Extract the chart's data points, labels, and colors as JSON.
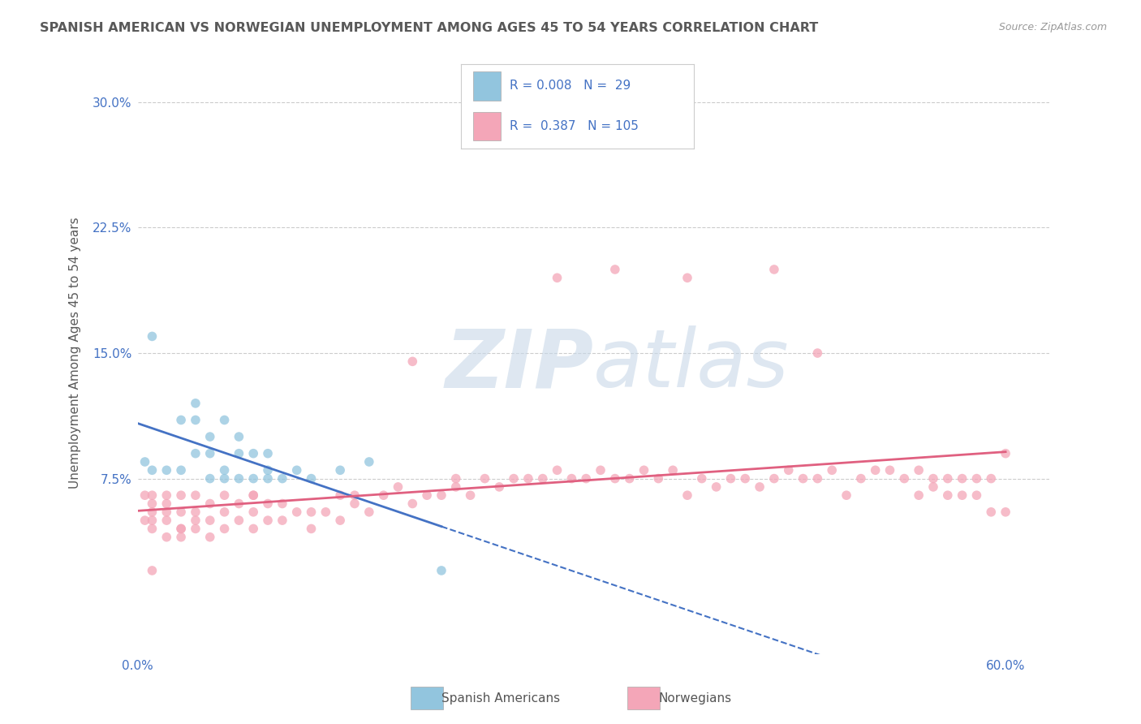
{
  "title": "SPANISH AMERICAN VS NORWEGIAN UNEMPLOYMENT AMONG AGES 45 TO 54 YEARS CORRELATION CHART",
  "source": "Source: ZipAtlas.com",
  "ylabel": "Unemployment Among Ages 45 to 54 years",
  "xlim": [
    0.0,
    0.63
  ],
  "ylim": [
    -0.03,
    0.33
  ],
  "ytick_vals": [
    0.075,
    0.15,
    0.225,
    0.3
  ],
  "ytick_labels": [
    "7.5%",
    "15.0%",
    "22.5%",
    "30.0%"
  ],
  "xtick_vals": [
    0.0,
    0.6
  ],
  "xtick_labels": [
    "0.0%",
    "60.0%"
  ],
  "blue_dot_color": "#92c5de",
  "pink_dot_color": "#f4a6b8",
  "blue_line_color": "#4472c4",
  "pink_line_color": "#e06080",
  "title_color": "#595959",
  "source_color": "#999999",
  "tick_color": "#4472c4",
  "ylabel_color": "#595959",
  "grid_color": "#cccccc",
  "legend_border": "#cccccc",
  "legend_text_color": "#4472c4",
  "watermark_color": "#c8d8e8",
  "background_color": "#ffffff",
  "dot_size": 70,
  "dot_alpha": 0.75,
  "legend_r1": "R = 0.008",
  "legend_n1": "N =  29",
  "legend_r2": "R =  0.387",
  "legend_n2": "N = 105",
  "bottom_label1": "Spanish Americans",
  "bottom_label2": "Norwegians",
  "sp_x": [
    0.005,
    0.01,
    0.01,
    0.02,
    0.03,
    0.03,
    0.04,
    0.04,
    0.04,
    0.05,
    0.05,
    0.05,
    0.06,
    0.06,
    0.06,
    0.07,
    0.07,
    0.07,
    0.08,
    0.08,
    0.09,
    0.09,
    0.09,
    0.1,
    0.11,
    0.12,
    0.14,
    0.16,
    0.21
  ],
  "sp_y": [
    0.085,
    0.08,
    0.16,
    0.08,
    0.08,
    0.11,
    0.09,
    0.11,
    0.12,
    0.075,
    0.09,
    0.1,
    0.075,
    0.08,
    0.11,
    0.075,
    0.09,
    0.1,
    0.075,
    0.09,
    0.075,
    0.08,
    0.09,
    0.075,
    0.08,
    0.075,
    0.08,
    0.085,
    0.02
  ],
  "no_x": [
    0.005,
    0.005,
    0.01,
    0.01,
    0.01,
    0.01,
    0.01,
    0.02,
    0.02,
    0.02,
    0.02,
    0.02,
    0.03,
    0.03,
    0.03,
    0.03,
    0.03,
    0.04,
    0.04,
    0.04,
    0.05,
    0.05,
    0.05,
    0.06,
    0.06,
    0.06,
    0.07,
    0.07,
    0.08,
    0.08,
    0.08,
    0.09,
    0.09,
    0.1,
    0.1,
    0.11,
    0.12,
    0.12,
    0.13,
    0.14,
    0.14,
    0.15,
    0.15,
    0.16,
    0.17,
    0.18,
    0.19,
    0.2,
    0.21,
    0.22,
    0.22,
    0.23,
    0.24,
    0.25,
    0.26,
    0.27,
    0.28,
    0.29,
    0.3,
    0.31,
    0.32,
    0.33,
    0.34,
    0.35,
    0.36,
    0.37,
    0.38,
    0.39,
    0.4,
    0.41,
    0.42,
    0.43,
    0.44,
    0.45,
    0.46,
    0.47,
    0.48,
    0.49,
    0.5,
    0.51,
    0.52,
    0.53,
    0.54,
    0.54,
    0.55,
    0.55,
    0.56,
    0.56,
    0.57,
    0.57,
    0.58,
    0.58,
    0.59,
    0.59,
    0.6,
    0.6,
    0.47,
    0.38,
    0.29,
    0.19,
    0.08,
    0.04,
    0.01,
    0.44,
    0.33
  ],
  "no_y": [
    0.05,
    0.065,
    0.045,
    0.05,
    0.055,
    0.06,
    0.065,
    0.04,
    0.05,
    0.055,
    0.06,
    0.065,
    0.045,
    0.055,
    0.065,
    0.04,
    0.045,
    0.05,
    0.055,
    0.065,
    0.04,
    0.05,
    0.06,
    0.045,
    0.055,
    0.065,
    0.05,
    0.06,
    0.045,
    0.055,
    0.065,
    0.05,
    0.06,
    0.05,
    0.06,
    0.055,
    0.045,
    0.055,
    0.055,
    0.05,
    0.065,
    0.06,
    0.065,
    0.055,
    0.065,
    0.07,
    0.06,
    0.065,
    0.065,
    0.07,
    0.075,
    0.065,
    0.075,
    0.07,
    0.075,
    0.075,
    0.075,
    0.08,
    0.075,
    0.075,
    0.08,
    0.075,
    0.075,
    0.08,
    0.075,
    0.08,
    0.065,
    0.075,
    0.07,
    0.075,
    0.075,
    0.07,
    0.075,
    0.08,
    0.075,
    0.075,
    0.08,
    0.065,
    0.075,
    0.08,
    0.08,
    0.075,
    0.065,
    0.08,
    0.07,
    0.075,
    0.065,
    0.075,
    0.065,
    0.075,
    0.065,
    0.075,
    0.055,
    0.075,
    0.055,
    0.09,
    0.15,
    0.195,
    0.195,
    0.145,
    0.065,
    0.045,
    0.02,
    0.2,
    0.2
  ]
}
